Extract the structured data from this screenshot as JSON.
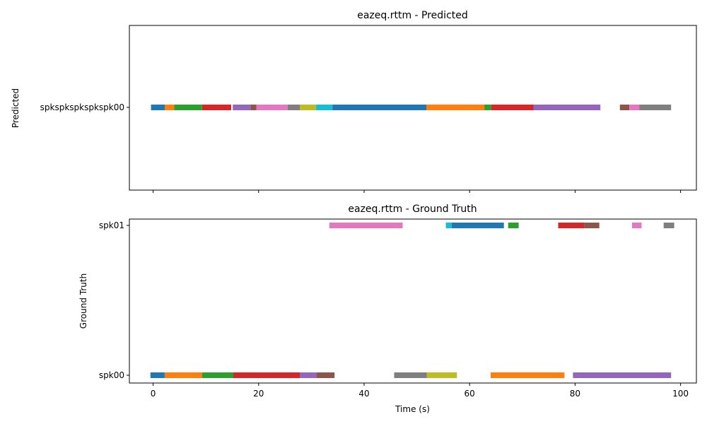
{
  "chart_data": [
    {
      "type": "timeline",
      "title": "eazeq.rttm - Predicted",
      "xlabel": "",
      "ylabel": "Predicted",
      "xlim": [
        -4.5,
        103
      ],
      "xticks": [
        0,
        20,
        40,
        60,
        80,
        100
      ],
      "x_tick_labels_visible": false,
      "rows": [
        "spkspkspkspkspk00"
      ],
      "row_labels": [
        "spkspkspkspkspk00"
      ],
      "grid": false,
      "segments": [
        {
          "row": 0,
          "start": -0.4,
          "end": 2.2,
          "color": "#1f77b4"
        },
        {
          "row": 0,
          "start": 2.2,
          "end": 4.0,
          "color": "#ff7f0e"
        },
        {
          "row": 0,
          "start": 4.0,
          "end": 9.3,
          "color": "#2ca02c"
        },
        {
          "row": 0,
          "start": 9.3,
          "end": 14.8,
          "color": "#d62728"
        },
        {
          "row": 0,
          "start": 15.1,
          "end": 18.5,
          "color": "#9467bd"
        },
        {
          "row": 0,
          "start": 18.5,
          "end": 19.6,
          "color": "#8c564b"
        },
        {
          "row": 0,
          "start": 19.6,
          "end": 25.5,
          "color": "#e377c2"
        },
        {
          "row": 0,
          "start": 25.5,
          "end": 27.8,
          "color": "#7f7f7f"
        },
        {
          "row": 0,
          "start": 27.8,
          "end": 30.9,
          "color": "#bcbd22"
        },
        {
          "row": 0,
          "start": 30.9,
          "end": 34.0,
          "color": "#17becf"
        },
        {
          "row": 0,
          "start": 34.0,
          "end": 51.8,
          "color": "#1f77b4"
        },
        {
          "row": 0,
          "start": 51.8,
          "end": 62.8,
          "color": "#ff7f0e"
        },
        {
          "row": 0,
          "start": 62.8,
          "end": 64.1,
          "color": "#2ca02c"
        },
        {
          "row": 0,
          "start": 64.1,
          "end": 72.1,
          "color": "#d62728"
        },
        {
          "row": 0,
          "start": 72.1,
          "end": 84.8,
          "color": "#9467bd"
        },
        {
          "row": 0,
          "start": 88.5,
          "end": 90.3,
          "color": "#8c564b"
        },
        {
          "row": 0,
          "start": 90.3,
          "end": 92.2,
          "color": "#e377c2"
        },
        {
          "row": 0,
          "start": 92.2,
          "end": 98.2,
          "color": "#7f7f7f"
        }
      ]
    },
    {
      "type": "timeline",
      "title": "eazeq.rttm - Ground Truth",
      "xlabel": "Time (s)",
      "ylabel": "Ground Truth",
      "xlim": [
        -4.5,
        103
      ],
      "xticks": [
        0,
        20,
        40,
        60,
        80,
        100
      ],
      "x_tick_labels_visible": true,
      "rows": [
        "spk00",
        "spk01"
      ],
      "row_labels": [
        "spk00",
        "spk01"
      ],
      "grid": false,
      "segments": [
        {
          "row": 1,
          "start": 33.4,
          "end": 47.3,
          "color": "#e377c2"
        },
        {
          "row": 1,
          "start": 55.5,
          "end": 56.6,
          "color": "#17becf"
        },
        {
          "row": 1,
          "start": 56.6,
          "end": 66.5,
          "color": "#1f77b4"
        },
        {
          "row": 1,
          "start": 67.3,
          "end": 69.3,
          "color": "#2ca02c"
        },
        {
          "row": 1,
          "start": 76.8,
          "end": 81.7,
          "color": "#d62728"
        },
        {
          "row": 1,
          "start": 81.7,
          "end": 84.6,
          "color": "#8c564b"
        },
        {
          "row": 1,
          "start": 90.8,
          "end": 92.6,
          "color": "#e377c2"
        },
        {
          "row": 1,
          "start": 96.8,
          "end": 98.8,
          "color": "#7f7f7f"
        },
        {
          "row": 0,
          "start": -0.5,
          "end": 2.2,
          "color": "#1f77b4"
        },
        {
          "row": 0,
          "start": 2.2,
          "end": 9.3,
          "color": "#ff7f0e"
        },
        {
          "row": 0,
          "start": 9.3,
          "end": 15.2,
          "color": "#2ca02c"
        },
        {
          "row": 0,
          "start": 15.2,
          "end": 27.8,
          "color": "#d62728"
        },
        {
          "row": 0,
          "start": 27.8,
          "end": 31.0,
          "color": "#9467bd"
        },
        {
          "row": 0,
          "start": 31.0,
          "end": 34.4,
          "color": "#8c564b"
        },
        {
          "row": 0,
          "start": 45.7,
          "end": 51.9,
          "color": "#7f7f7f"
        },
        {
          "row": 0,
          "start": 51.9,
          "end": 57.6,
          "color": "#bcbd22"
        },
        {
          "row": 0,
          "start": 64.0,
          "end": 78.0,
          "color": "#ff7f0e"
        },
        {
          "row": 0,
          "start": 79.6,
          "end": 98.2,
          "color": "#9467bd"
        }
      ]
    }
  ]
}
